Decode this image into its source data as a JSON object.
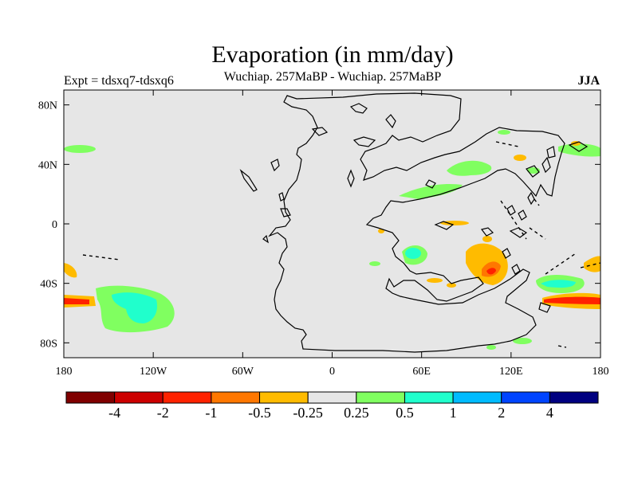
{
  "title": "Evaporation (in mm/day)",
  "subtitle": "Wuchiap. 257MaBP - Wuchiap. 257MaBP",
  "left_label": "Expt = tdsxq7-tdsxq6",
  "season": "JJA",
  "map": {
    "projection": "cylindrical equidistant",
    "lon_range": [
      -180,
      180
    ],
    "lat_range": [
      -90,
      90
    ],
    "background_color": "#e6e6e6",
    "x_ticks": [
      {
        "lon": -180,
        "label": "180"
      },
      {
        "lon": -120,
        "label": "120W"
      },
      {
        "lon": -60,
        "label": "60W"
      },
      {
        "lon": 0,
        "label": "0"
      },
      {
        "lon": 60,
        "label": "60E"
      },
      {
        "lon": 120,
        "label": "120E"
      },
      {
        "lon": 180,
        "label": "180"
      }
    ],
    "y_ticks": [
      {
        "lat": 80,
        "label": "80N"
      },
      {
        "lat": 40,
        "label": "40N"
      },
      {
        "lat": 0,
        "label": "0"
      },
      {
        "lat": -40,
        "label": "40S"
      },
      {
        "lat": -80,
        "label": "80S"
      }
    ]
  },
  "colorbar": {
    "colors": [
      "#800000",
      "#cc0000",
      "#ff2200",
      "#ff7700",
      "#ffbb00",
      "#e6e6e6",
      "#80ff60",
      "#20ffcc",
      "#00bbff",
      "#0044ff",
      "#000080"
    ],
    "labels": [
      "-4",
      "-2",
      "-1",
      "-0.5",
      "-0.25",
      "0.25",
      "0.5",
      "1",
      "2",
      "4"
    ]
  }
}
